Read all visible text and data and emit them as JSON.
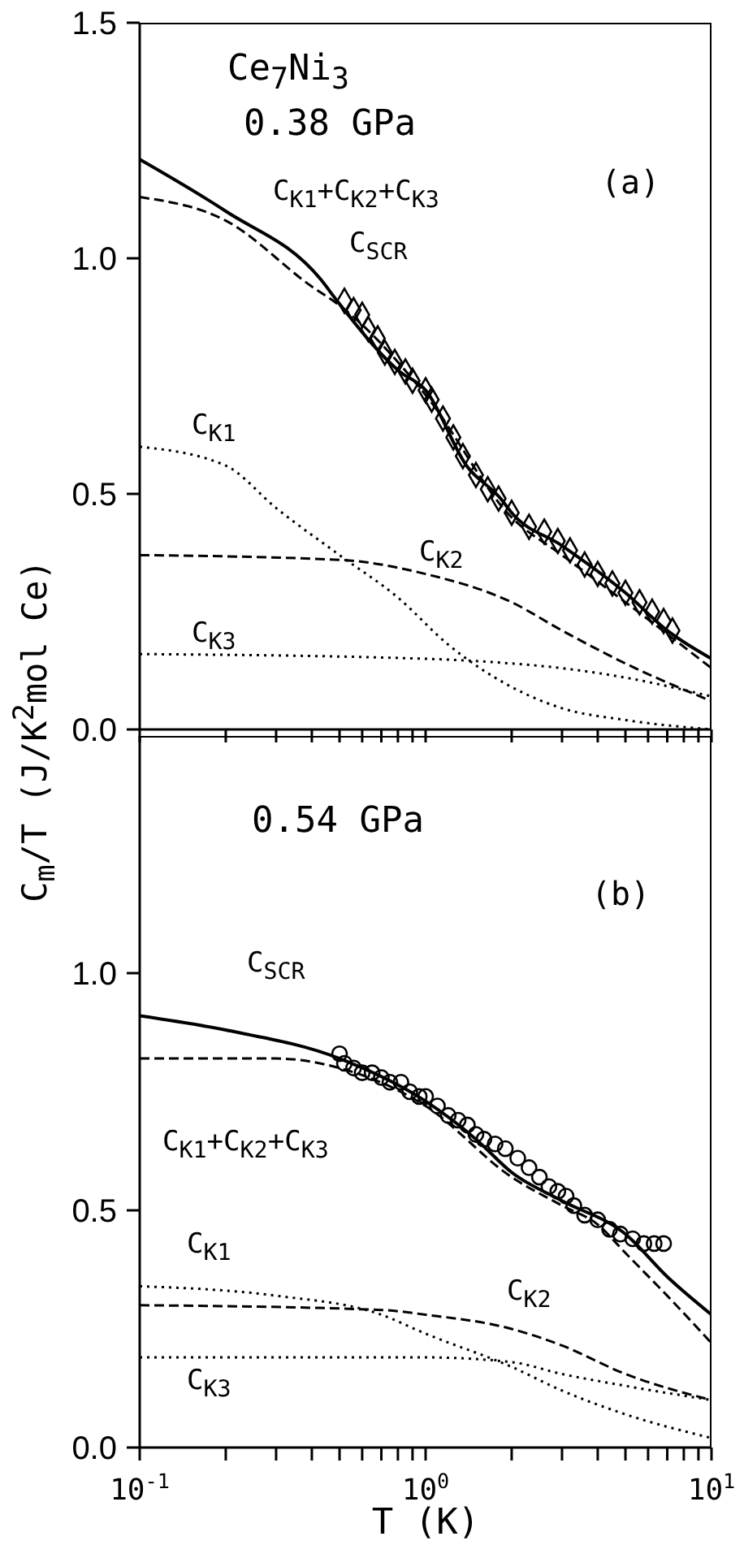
{
  "chart_data": [
    {
      "type": "line",
      "xlim": [
        0.1,
        10
      ],
      "log": "x",
      "tick_labels": "y",
      "xticks": [
        {
          "value": 0.1,
          "label": null
        },
        {
          "value": 0.2,
          "label": null
        },
        {
          "value": 0.3,
          "label": null
        },
        {
          "value": 0.4,
          "label": null
        },
        {
          "value": 0.5,
          "label": null
        },
        {
          "value": 0.6,
          "label": null
        },
        {
          "value": 0.7,
          "label": null
        },
        {
          "value": 0.8,
          "label": null
        },
        {
          "value": 0.9,
          "label": null
        },
        {
          "value": 1,
          "label": null
        },
        {
          "value": 2,
          "label": null
        },
        {
          "value": 3,
          "label": null
        },
        {
          "value": 4,
          "label": null
        },
        {
          "value": 5,
          "label": null
        },
        {
          "value": 6,
          "label": null
        },
        {
          "value": 7,
          "label": null
        },
        {
          "value": 8,
          "label": null
        },
        {
          "value": 9,
          "label": null
        },
        {
          "value": 10,
          "label": null
        }
      ],
      "ylim": [
        0,
        1.5
      ],
      "yticks": [
        {
          "value": 0,
          "label": "0.0"
        },
        {
          "value": 0.5,
          "label": "0.5"
        },
        {
          "value": 1,
          "label": "1.0"
        },
        {
          "value": 1.5,
          "label": "1.5"
        }
      ],
      "annotations": [
        "Ce$_{7}$Ni$_{3}$",
        "0.38 GPa",
        "(a)",
        "C$_{K1}$+C$_{K2}$+C$_{K3}$",
        "C$_{SCR}$",
        "C$_{K1}$",
        "C$_{K2}$",
        "C$_{K3}$"
      ],
      "series": [
        {
          "type": "line",
          "line_style": "solid",
          "color": "#000000",
          "x": [
            0.1,
            0.2,
            0.43,
            0.49,
            0.81,
            1,
            1.39,
            1.83,
            2,
            3,
            5,
            7,
            10
          ],
          "values": [
            1.21,
            1.1,
            0.955,
            0.91,
            0.76,
            0.72,
            0.56,
            0.49,
            0.46,
            0.39,
            0.29,
            0.21,
            0.15
          ]
        },
        {
          "type": "line",
          "line_style": "dashed",
          "color": "#000000",
          "x": [
            0.1,
            0.2,
            0.4,
            0.5,
            1,
            2,
            3,
            5,
            10
          ],
          "values": [
            1.13,
            1.08,
            0.94,
            0.9,
            0.71,
            0.45,
            0.37,
            0.27,
            0.13
          ]
        },
        {
          "type": "line",
          "line_style": "dotted",
          "color": "#000000",
          "x": [
            0.1,
            0.2,
            0.3,
            0.5,
            0.8,
            1.2,
            2,
            3,
            5,
            10
          ],
          "values": [
            0.6,
            0.56,
            0.47,
            0.37,
            0.28,
            0.18,
            0.09,
            0.045,
            0.02,
            0
          ]
        },
        {
          "type": "line",
          "line_style": "dashed",
          "color": "#000000",
          "x": [
            0.1,
            0.5,
            1,
            2,
            3,
            5,
            10
          ],
          "values": [
            0.37,
            0.36,
            0.33,
            0.27,
            0.21,
            0.14,
            0.06
          ]
        },
        {
          "type": "line",
          "line_style": "dotted",
          "color": "#000000",
          "x": [
            0.1,
            1,
            2,
            3,
            5,
            10
          ],
          "values": [
            0.16,
            0.15,
            0.14,
            0.13,
            0.11,
            0.07
          ]
        },
        {
          "type": "scatter",
          "marker": "diamond",
          "color": "#000000",
          "x": [
            0.52,
            0.56,
            0.6,
            0.63,
            0.68,
            0.72,
            0.78,
            0.85,
            0.9,
            1.0,
            1.05,
            1.15,
            1.25,
            1.35,
            1.5,
            1.65,
            1.8,
            2.0,
            2.3,
            2.6,
            2.9,
            3.2,
            3.6,
            4.0,
            4.5,
            5.0,
            5.6,
            6.2,
            6.8,
            7.3
          ],
          "values": [
            0.91,
            0.89,
            0.88,
            0.85,
            0.83,
            0.8,
            0.78,
            0.76,
            0.74,
            0.72,
            0.7,
            0.66,
            0.62,
            0.58,
            0.54,
            0.51,
            0.49,
            0.46,
            0.43,
            0.42,
            0.4,
            0.38,
            0.35,
            0.33,
            0.31,
            0.29,
            0.27,
            0.25,
            0.23,
            0.21
          ]
        }
      ]
    },
    {
      "type": "line",
      "xlim": [
        0.1,
        10
      ],
      "log": "x",
      "xlabel": "T (K)",
      "ylabel": "C$_{m}$/T (J/K$^{2}$mol Ce)",
      "xticks": [
        {
          "value": 0.1,
          "label": "10$^{-1}$"
        },
        {
          "value": 0.2,
          "label": null
        },
        {
          "value": 0.3,
          "label": null
        },
        {
          "value": 0.4,
          "label": null
        },
        {
          "value": 0.5,
          "label": null
        },
        {
          "value": 0.6,
          "label": null
        },
        {
          "value": 0.7,
          "label": null
        },
        {
          "value": 0.8,
          "label": null
        },
        {
          "value": 0.9,
          "label": null
        },
        {
          "value": 1,
          "label": "10$^{0}$"
        },
        {
          "value": 2,
          "label": null
        },
        {
          "value": 3,
          "label": null
        },
        {
          "value": 4,
          "label": null
        },
        {
          "value": 5,
          "label": null
        },
        {
          "value": 6,
          "label": null
        },
        {
          "value": 7,
          "label": null
        },
        {
          "value": 8,
          "label": null
        },
        {
          "value": 9,
          "label": null
        },
        {
          "value": 10,
          "label": "10$^{1}$"
        }
      ],
      "ylim": [
        0,
        1.5
      ],
      "yticks": [
        {
          "value": 0,
          "label": "0.0"
        },
        {
          "value": 0.5,
          "label": "0.5"
        },
        {
          "value": 1,
          "label": "1.0"
        }
      ],
      "annotations": [
        "0.54 GPa",
        "(b)",
        "C$_{SCR}$",
        "C$_{K1}$+C$_{K2}$+C$_{K3}$",
        "C$_{K1}$",
        "C$_{K2}$",
        "C$_{K3}$"
      ],
      "series": [
        {
          "type": "line",
          "line_style": "solid",
          "color": "#000000",
          "x": [
            0.1,
            0.2,
            0.5,
            1,
            1.5,
            2,
            3,
            5,
            7,
            10
          ],
          "values": [
            0.91,
            0.88,
            0.82,
            0.73,
            0.65,
            0.58,
            0.52,
            0.45,
            0.36,
            0.28
          ]
        },
        {
          "type": "line",
          "line_style": "dashed",
          "color": "#000000",
          "x": [
            0.1,
            0.3,
            0.5,
            1,
            2,
            3,
            4,
            5,
            7,
            10
          ],
          "values": [
            0.82,
            0.82,
            0.8,
            0.72,
            0.57,
            0.51,
            0.47,
            0.41,
            0.32,
            0.22
          ]
        },
        {
          "type": "line",
          "line_style": "dotted",
          "color": "#000000",
          "x": [
            0.1,
            0.3,
            0.7,
            1,
            2,
            3,
            5,
            10
          ],
          "values": [
            0.34,
            0.32,
            0.28,
            0.24,
            0.17,
            0.12,
            0.07,
            0.02
          ]
        },
        {
          "type": "line",
          "line_style": "dashed",
          "color": "#000000",
          "x": [
            0.1,
            0.7,
            1,
            2,
            3,
            5,
            10
          ],
          "values": [
            0.3,
            0.29,
            0.28,
            0.25,
            0.215,
            0.155,
            0.1
          ]
        },
        {
          "type": "line",
          "line_style": "dotted",
          "color": "#000000",
          "x": [
            0.1,
            1,
            2,
            3,
            5,
            10
          ],
          "values": [
            0.19,
            0.19,
            0.18,
            0.155,
            0.13,
            0.1
          ]
        },
        {
          "type": "scatter",
          "marker": "circle",
          "color": "#000000",
          "x": [
            0.5,
            0.52,
            0.56,
            0.6,
            0.65,
            0.7,
            0.75,
            0.82,
            0.88,
            0.95,
            1.0,
            1.1,
            1.2,
            1.3,
            1.4,
            1.5,
            1.6,
            1.75,
            1.9,
            2.1,
            2.3,
            2.5,
            2.7,
            2.9,
            3.1,
            3.3,
            3.6,
            4.0,
            4.4,
            4.8,
            5.3,
            5.8,
            6.3,
            6.8
          ],
          "values": [
            0.83,
            0.81,
            0.8,
            0.79,
            0.79,
            0.78,
            0.77,
            0.77,
            0.75,
            0.74,
            0.74,
            0.72,
            0.7,
            0.69,
            0.68,
            0.66,
            0.65,
            0.64,
            0.63,
            0.61,
            0.59,
            0.57,
            0.55,
            0.54,
            0.53,
            0.51,
            0.49,
            0.48,
            0.46,
            0.45,
            0.44,
            0.43,
            0.43,
            0.43
          ]
        }
      ]
    }
  ]
}
